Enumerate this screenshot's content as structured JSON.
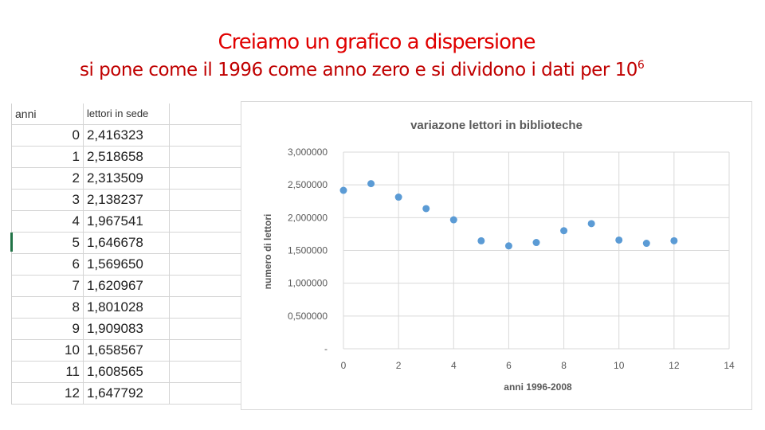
{
  "header": {
    "title": "Creiamo un grafico a dispersione",
    "subtitle": "si pone come il 1996 come anno zero e si dividono i dati per 10",
    "subtitle_exp": "6"
  },
  "sheet": {
    "col_a": "anni",
    "col_b": "lettori in sede",
    "rows": [
      {
        "a": "0",
        "b": "2,416323"
      },
      {
        "a": "1",
        "b": "2,518658"
      },
      {
        "a": "2",
        "b": "2,313509"
      },
      {
        "a": "3",
        "b": "2,138237"
      },
      {
        "a": "4",
        "b": "1,967541"
      },
      {
        "a": "5",
        "b": "1,646678"
      },
      {
        "a": "6",
        "b": "1,569650"
      },
      {
        "a": "7",
        "b": "1,620967"
      },
      {
        "a": "8",
        "b": "1,801028"
      },
      {
        "a": "9",
        "b": "1,909083"
      },
      {
        "a": "10",
        "b": "1,658567"
      },
      {
        "a": "11",
        "b": "1,608565"
      },
      {
        "a": "12",
        "b": "1,647792"
      }
    ]
  },
  "chart_data": {
    "type": "scatter",
    "title": "variazone lettori in biblioteche",
    "xlabel": "anni 1996-2008",
    "ylabel": "numero di lettori",
    "xlim": [
      0,
      14
    ],
    "ylim": [
      0,
      3
    ],
    "x_ticks": [
      "0",
      "2",
      "4",
      "6",
      "8",
      "10",
      "12",
      "14"
    ],
    "y_ticks": [
      "-",
      "0,500000",
      "1,000000",
      "1,500000",
      "2,000000",
      "2,500000",
      "3,000000"
    ],
    "grid": true,
    "color": "#5b9bd5",
    "x": [
      0,
      1,
      2,
      3,
      4,
      5,
      6,
      7,
      8,
      9,
      10,
      11,
      12
    ],
    "y": [
      2.416323,
      2.518658,
      2.313509,
      2.138237,
      1.967541,
      1.646678,
      1.56965,
      1.620967,
      1.801028,
      1.909083,
      1.658567,
      1.608565,
      1.647792
    ]
  }
}
